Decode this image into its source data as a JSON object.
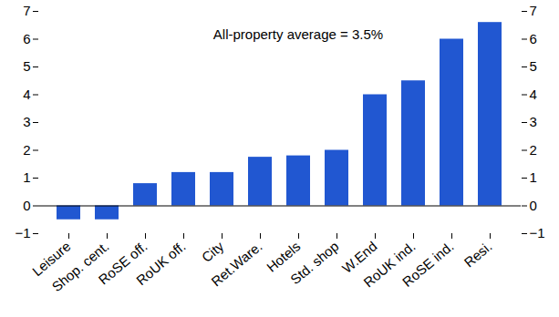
{
  "chart_data": {
    "type": "bar",
    "annotation": "All-property average = 3.5%",
    "categories": [
      "Leisure",
      "Shop. cent.",
      "RoSE off.",
      "RoUK off.",
      "City",
      "Ret.Ware.",
      "Hotels",
      "Std. shop",
      "W.End",
      "RoUK ind.",
      "RoSE ind.",
      "Resi."
    ],
    "values": [
      -0.5,
      -0.5,
      0.8,
      1.2,
      1.2,
      1.75,
      1.8,
      2.0,
      4.0,
      4.5,
      6.0,
      6.6
    ],
    "color": "#2157d1",
    "ylim": [
      -1,
      7
    ],
    "yticks": [
      -1,
      0,
      1,
      2,
      3,
      4,
      5,
      6,
      7
    ],
    "grid": false
  }
}
